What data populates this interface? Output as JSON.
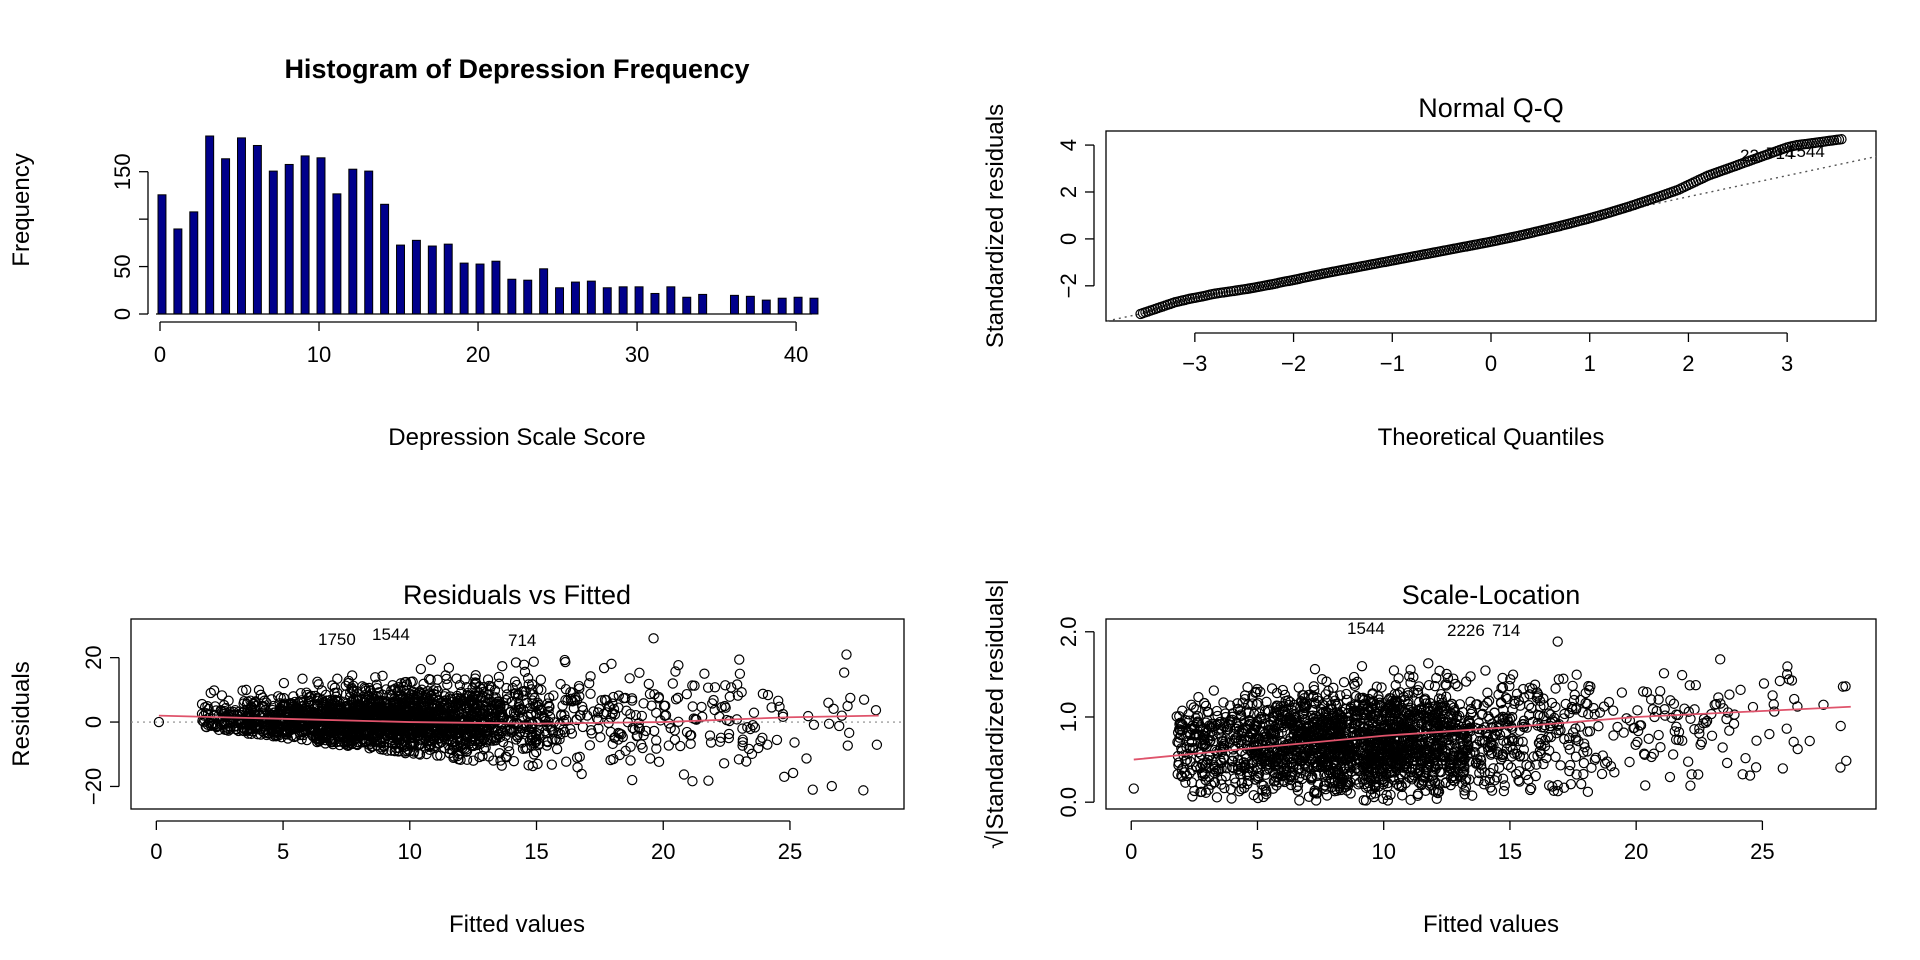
{
  "colors": {
    "bar_fill": "#00008B",
    "smoother": "#DF536B",
    "reference": "#555555",
    "points": "#000000"
  },
  "chart_data": [
    {
      "id": "hist",
      "type": "bar",
      "title": "Histogram of Depression Frequency",
      "xlabel": "Depression Scale Score",
      "ylabel": "Frequency",
      "xlim": [
        0,
        41
      ],
      "ylim": [
        0,
        175
      ],
      "xticks": [
        0,
        10,
        20,
        30,
        40
      ],
      "yticks": [
        0,
        50,
        100,
        150
      ],
      "ytick_labels": [
        "0",
        "50",
        "",
        "150"
      ],
      "x": [
        0,
        1,
        2,
        3,
        4,
        5,
        6,
        7,
        8,
        9,
        10,
        11,
        12,
        13,
        14,
        15,
        16,
        17,
        18,
        19,
        20,
        21,
        22,
        23,
        24,
        25,
        26,
        27,
        28,
        29,
        30,
        31,
        32,
        33,
        34,
        35,
        36,
        37,
        38,
        39,
        40,
        41
      ],
      "values": [
        113,
        77,
        95,
        175,
        151,
        173,
        165,
        138,
        145,
        154,
        152,
        114,
        140,
        138,
        103,
        60,
        65,
        59,
        61,
        41,
        40,
        43,
        24,
        23,
        35,
        15,
        21,
        22,
        15,
        16,
        16,
        9,
        16,
        5,
        8,
        0,
        7,
        6,
        2,
        4,
        5,
        4
      ]
    },
    {
      "id": "qq",
      "type": "scatter",
      "title": "Normal Q-Q",
      "xlabel": "Theoretical Quantiles",
      "ylabel": "Standardized residuals",
      "xlim": [
        -3.9,
        3.9
      ],
      "ylim": [
        -3.5,
        4.6
      ],
      "xticks": [
        -3,
        -2,
        -1,
        0,
        1,
        2,
        3
      ],
      "yticks": [
        -2,
        0,
        2,
        4
      ],
      "reference_line": {
        "intercept": 0.0,
        "slope": 0.9
      },
      "annotations": [
        "22",
        "714",
        "1544"
      ],
      "theoretical": [
        -3.55,
        -3.2,
        -3.05,
        -2.92,
        -2.82,
        -2.74,
        -2.66,
        -2.58,
        -2.5,
        -2.4,
        -2.3,
        -2.2,
        -2.1,
        -2.0,
        -1.9,
        -1.8,
        -1.7,
        -1.6,
        -1.5,
        -1.4,
        -1.3,
        -1.2,
        -1.1,
        -1.0,
        -0.9,
        -0.8,
        -0.7,
        -0.6,
        -0.5,
        -0.4,
        -0.3,
        -0.2,
        -0.1,
        0.0,
        0.1,
        0.2,
        0.3,
        0.4,
        0.5,
        0.6,
        0.7,
        0.8,
        0.9,
        1.0,
        1.1,
        1.2,
        1.3,
        1.4,
        1.5,
        1.6,
        1.7,
        1.8,
        1.9,
        2.0,
        2.1,
        2.2,
        2.3,
        2.4,
        2.5,
        2.6,
        2.7,
        2.8,
        2.9,
        3.0,
        3.1,
        3.2,
        3.55
      ],
      "residuals": [
        -3.2,
        -2.7,
        -2.55,
        -2.45,
        -2.35,
        -2.3,
        -2.25,
        -2.2,
        -2.15,
        -2.08,
        -2.0,
        -1.92,
        -1.83,
        -1.75,
        -1.66,
        -1.57,
        -1.48,
        -1.4,
        -1.32,
        -1.24,
        -1.16,
        -1.08,
        -1.0,
        -0.92,
        -0.84,
        -0.76,
        -0.68,
        -0.6,
        -0.52,
        -0.44,
        -0.36,
        -0.28,
        -0.2,
        -0.12,
        -0.03,
        0.06,
        0.15,
        0.25,
        0.35,
        0.45,
        0.55,
        0.66,
        0.77,
        0.88,
        1.0,
        1.12,
        1.25,
        1.38,
        1.52,
        1.66,
        1.8,
        1.95,
        2.1,
        2.3,
        2.5,
        2.7,
        2.85,
        3.0,
        3.15,
        3.3,
        3.45,
        3.6,
        3.75,
        3.9,
        4.0,
        4.05,
        4.25
      ]
    },
    {
      "id": "rvf",
      "type": "scatter",
      "title": "Residuals vs Fitted",
      "xlabel": "Fitted values",
      "ylabel": "Residuals",
      "xlim": [
        -1.0,
        29.5
      ],
      "ylim": [
        -27,
        32
      ],
      "xticks": [
        0,
        5,
        10,
        15,
        20,
        25
      ],
      "yticks": [
        -20,
        0,
        20
      ],
      "annotations": [
        "1750",
        "1544",
        "714"
      ],
      "smoother": [
        [
          0.1,
          2.0
        ],
        [
          5,
          1.0
        ],
        [
          10,
          0.0
        ],
        [
          15,
          -0.5
        ],
        [
          20,
          0.0
        ],
        [
          25,
          1.5
        ],
        [
          28.5,
          2.0
        ]
      ]
    },
    {
      "id": "sl",
      "type": "scatter",
      "title": "Scale-Location",
      "xlabel": "Fitted values",
      "ylabel": "√|Standardized residuals|",
      "xlim": [
        -1.0,
        29.5
      ],
      "ylim": [
        -0.08,
        2.15
      ],
      "xticks": [
        0,
        5,
        10,
        15,
        20,
        25
      ],
      "yticks": [
        0.0,
        1.0,
        2.0
      ],
      "ytick_labels": [
        "0.0",
        "1.0",
        "2.0"
      ],
      "annotations": [
        "1544",
        "2226",
        "714"
      ],
      "smoother": [
        [
          0.1,
          0.5
        ],
        [
          5,
          0.64
        ],
        [
          10,
          0.78
        ],
        [
          15,
          0.88
        ],
        [
          20,
          1.0
        ],
        [
          25,
          1.07
        ],
        [
          28.5,
          1.12
        ]
      ]
    }
  ]
}
